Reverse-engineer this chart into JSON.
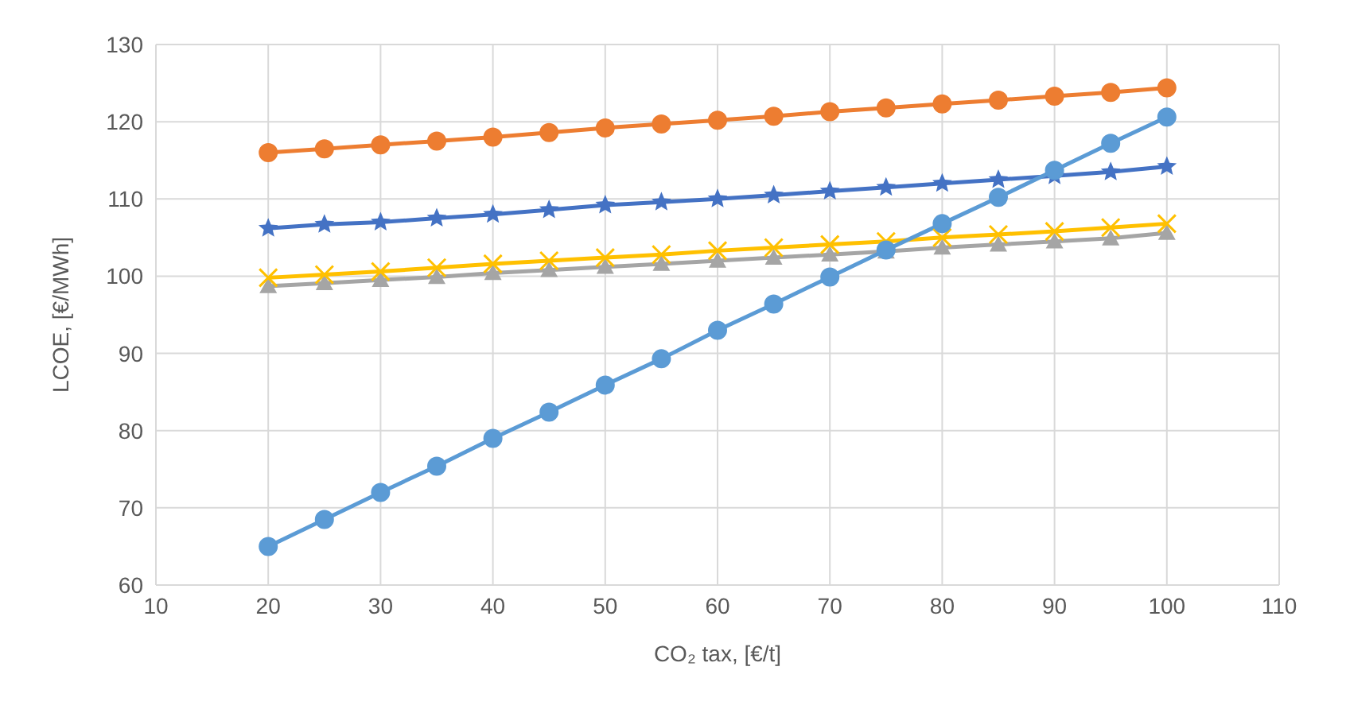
{
  "chart_data": {
    "type": "line",
    "xlabel": "CO₂ tax, [€/t]",
    "ylabel": "LCOE, [€/MWh]",
    "x": [
      20,
      25,
      30,
      35,
      40,
      45,
      50,
      55,
      60,
      65,
      70,
      75,
      80,
      85,
      90,
      95,
      100
    ],
    "xlim": [
      10,
      110
    ],
    "xticks": [
      10,
      20,
      30,
      40,
      50,
      60,
      70,
      80,
      90,
      100,
      110
    ],
    "ylim": [
      60,
      130
    ],
    "yticks": [
      60,
      70,
      80,
      90,
      100,
      110,
      120,
      130
    ],
    "grid": true,
    "legend": false,
    "line_style": "solid",
    "series": [
      {
        "color": "#5b9bd5",
        "marker": "circle",
        "values": [
          65,
          68.5,
          72,
          75.4,
          79,
          82.4,
          85.9,
          89.3,
          93,
          96.4,
          99.9,
          103.4,
          106.8,
          110.2,
          113.7,
          117.2,
          120.6
        ]
      },
      {
        "color": "#ed7d31",
        "marker": "circle",
        "values": [
          116,
          116.5,
          117,
          117.5,
          118,
          118.6,
          119.2,
          119.7,
          120.2,
          120.7,
          121.3,
          121.8,
          122.3,
          122.8,
          123.3,
          123.8,
          124.4
        ]
      },
      {
        "color": "#4472c4",
        "marker": "star",
        "values": [
          106.2,
          106.7,
          107,
          107.5,
          108,
          108.6,
          109.2,
          109.6,
          110,
          110.5,
          111,
          111.5,
          112,
          112.5,
          113,
          113.5,
          114.2
        ]
      },
      {
        "color": "#ffc000",
        "marker": "cross",
        "values": [
          99.8,
          100.2,
          100.6,
          101.1,
          101.6,
          102,
          102.4,
          102.8,
          103.3,
          103.7,
          104.1,
          104.5,
          105,
          105.4,
          105.8,
          106.3,
          106.8
        ]
      },
      {
        "color": "#a5a5a5",
        "marker": "triangle",
        "values": [
          98.7,
          99.1,
          99.5,
          99.9,
          100.4,
          100.8,
          101.2,
          101.6,
          102,
          102.4,
          102.8,
          103.2,
          103.7,
          104.1,
          104.5,
          104.9,
          105.6
        ]
      }
    ]
  }
}
